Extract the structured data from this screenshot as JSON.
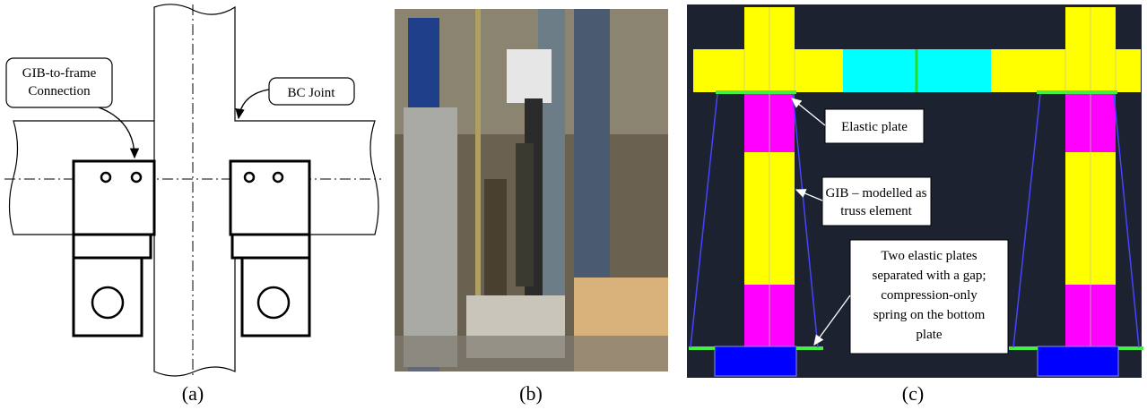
{
  "panel_a": {
    "caption": "(a)",
    "callout_connection": [
      "GIB-to-frame",
      "Connection"
    ],
    "callout_joint": [
      "BC Joint"
    ]
  },
  "panel_b": {
    "caption": "(b)"
  },
  "panel_c": {
    "caption": "(c)",
    "callout_plate": [
      "Elastic plate"
    ],
    "callout_gib": [
      "GIB – modelled as",
      "truss element"
    ],
    "callout_plates": [
      "Two elastic plates",
      "separated with a gap;",
      "compression-only",
      "spring on the bottom",
      "plate"
    ]
  }
}
